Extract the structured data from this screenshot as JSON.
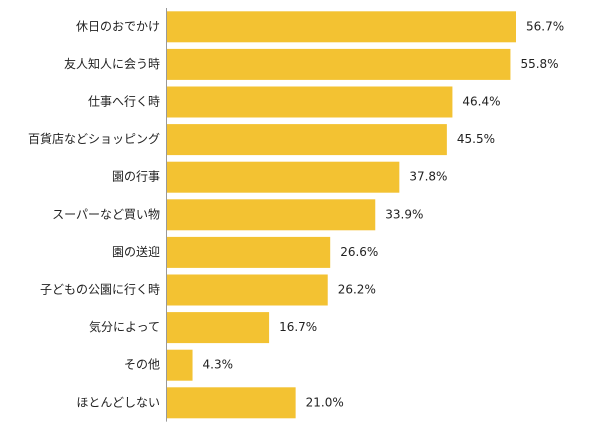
{
  "chart_data": {
    "type": "bar",
    "orientation": "horizontal",
    "categories": [
      "休日のおでかけ",
      "友人知人に会う時",
      "仕事へ行く時",
      "百貨店などショッピング",
      "園の行事",
      "スーパーなど買い物",
      "園の送迎",
      "子どもの公園に行く時",
      "気分によって",
      "その他",
      "ほとんどしない"
    ],
    "values": [
      56.7,
      55.8,
      46.4,
      45.5,
      37.8,
      33.9,
      26.6,
      26.2,
      16.7,
      4.3,
      21.0
    ],
    "value_labels": [
      "56.7%",
      "55.8%",
      "46.4%",
      "45.5%",
      "37.8%",
      "33.9%",
      "26.6%",
      "26.2%",
      "16.7%",
      "4.3%",
      "21.0%"
    ],
    "xlim": [
      0,
      65
    ],
    "grid": false,
    "bar_color": "#F3C232",
    "axis_color": "#999999"
  }
}
